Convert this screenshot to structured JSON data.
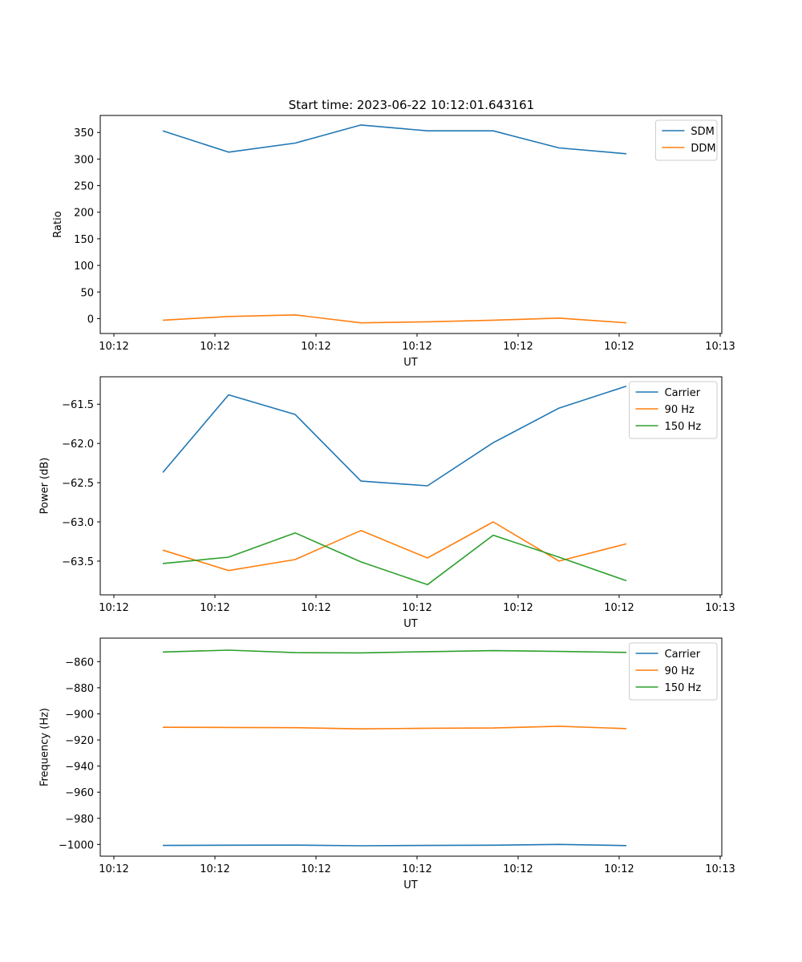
{
  "title": "Start time: 2023-06-22 10:12:01.643161",
  "chart_data": [
    {
      "type": "line",
      "xlabel": "UT",
      "ylabel": "Ratio",
      "xtick_labels": [
        "10:12",
        "10:12",
        "10:12",
        "10:12",
        "10:12",
        "10:12",
        "10:13"
      ],
      "ylim": [
        -28,
        382
      ],
      "yticks": [
        0,
        50,
        100,
        150,
        200,
        250,
        300,
        350
      ],
      "ytick_labels": [
        "0",
        "50",
        "100",
        "150",
        "200",
        "250",
        "300",
        "350"
      ],
      "legend_position": "top-right",
      "series": [
        {
          "name": "SDM",
          "color": "#1f77b4",
          "values": [
            353,
            313,
            330,
            364,
            353,
            353,
            321,
            310
          ]
        },
        {
          "name": "DDM",
          "color": "#ff7f0e",
          "values": [
            -3,
            4,
            7,
            -8,
            -6,
            -3,
            1,
            -8
          ]
        }
      ]
    },
    {
      "type": "line",
      "xlabel": "UT",
      "ylabel": "Power (dB)",
      "xtick_labels": [
        "10:12",
        "10:12",
        "10:12",
        "10:12",
        "10:12",
        "10:12",
        "10:13"
      ],
      "ylim": [
        -63.93,
        -61.15
      ],
      "yticks": [
        -63.5,
        -63.0,
        -62.5,
        -62.0,
        -61.5
      ],
      "ytick_labels": [
        "−63.5",
        "−63.0",
        "−62.5",
        "−62.0",
        "−61.5"
      ],
      "legend_position": "top-right",
      "series": [
        {
          "name": "Carrier",
          "color": "#1f77b4",
          "values": [
            -62.37,
            -61.38,
            -61.63,
            -62.48,
            -62.54,
            -61.99,
            -61.55,
            -61.27
          ]
        },
        {
          "name": "90 Hz",
          "color": "#ff7f0e",
          "values": [
            -63.36,
            -63.62,
            -63.48,
            -63.11,
            -63.46,
            -63.0,
            -63.5,
            -63.28
          ]
        },
        {
          "name": "150 Hz",
          "color": "#2ca02c",
          "values": [
            -63.53,
            -63.45,
            -63.14,
            -63.51,
            -63.8,
            -63.17,
            -63.45,
            -63.75
          ]
        }
      ]
    },
    {
      "type": "line",
      "xlabel": "UT",
      "ylabel": "Frequency (Hz)",
      "xtick_labels": [
        "10:12",
        "10:12",
        "10:12",
        "10:12",
        "10:12",
        "10:12",
        "10:13"
      ],
      "ylim": [
        -1009,
        -842
      ],
      "yticks": [
        -1000,
        -980,
        -960,
        -940,
        -920,
        -900,
        -880,
        -860
      ],
      "ytick_labels": [
        "−1000",
        "−980",
        "−960",
        "−940",
        "−920",
        "−900",
        "−880",
        "−860"
      ],
      "legend_position": "top-right",
      "series": [
        {
          "name": "Carrier",
          "color": "#1f77b4",
          "values": [
            -1000.8,
            -1000.6,
            -1000.5,
            -1001.0,
            -1000.8,
            -1000.6,
            -1000.0,
            -1000.9
          ]
        },
        {
          "name": "90 Hz",
          "color": "#ff7f0e",
          "values": [
            -910.3,
            -910.4,
            -910.6,
            -911.5,
            -911.0,
            -910.8,
            -909.5,
            -911.3
          ]
        },
        {
          "name": "150 Hz",
          "color": "#2ca02c",
          "values": [
            -852.6,
            -851.2,
            -853.1,
            -853.3,
            -852.4,
            -851.6,
            -852.2,
            -852.9
          ]
        }
      ]
    }
  ]
}
